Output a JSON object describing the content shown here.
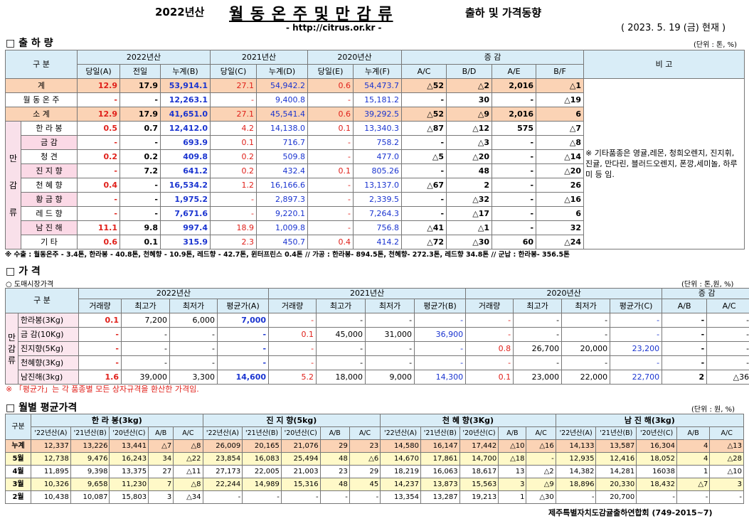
{
  "header": {
    "year_label": "2022년산",
    "main_title": "월 동 온 주 및 만 감 류",
    "sub_title": "출하 및 가격동향",
    "url": "- http://citrus.or.kr -",
    "date": "( 2023.  5.  19 (금) 현재 )"
  },
  "ship": {
    "title": "□ 출 하 량",
    "unit": "(단위 : 톤, %)",
    "h_gubun": "구    분",
    "h_2022": "2022년산",
    "h_2021": "2021년산",
    "h_2020": "2020년산",
    "h_inc": "증     감",
    "h_note": "비 고",
    "subh": [
      "당일(A)",
      "전일",
      "누계(B)",
      "당일(C)",
      "누계(D)",
      "당일(E)",
      "누계(F)",
      "A/C",
      "B/D",
      "A/E",
      "B/F"
    ],
    "total": {
      "label": "계",
      "v": [
        "12.9",
        "17.9",
        "53,914.1",
        "27.1",
        "54,942.2",
        "0.6",
        "54,473.7",
        "△52",
        "△2",
        "2,016",
        "△1"
      ]
    },
    "winter": {
      "label": "월 동 온 주",
      "v": [
        "-",
        "-",
        "12,263.1",
        "-",
        "9,400.8",
        "-",
        "15,181.2",
        "-",
        "30",
        "-",
        "△19"
      ]
    },
    "subtotal": {
      "label": "소    계",
      "v": [
        "12.9",
        "17.9",
        "41,651.0",
        "27.1",
        "45,541.4",
        "0.6",
        "39,292.5",
        "△52",
        "△9",
        "2,016",
        "6"
      ]
    },
    "side_label": [
      "만",
      "감",
      "류"
    ],
    "rows": [
      {
        "label": "한 라 봉",
        "v": [
          "0.5",
          "0.7",
          "12,412.0",
          "4.2",
          "14,138.0",
          "0.1",
          "13,340.3",
          "△87",
          "△12",
          "575",
          "△7"
        ]
      },
      {
        "label": "금   감",
        "v": [
          "-",
          "-",
          "693.9",
          "0.1",
          "716.7",
          "-",
          "758.2",
          "-",
          "△3",
          "-",
          "△8"
        ]
      },
      {
        "label": "청   견",
        "v": [
          "0.2",
          "0.2",
          "409.8",
          "0.2",
          "509.8",
          "-",
          "477.0",
          "△5",
          "△20",
          "-",
          "△14"
        ]
      },
      {
        "label": "진 지 향",
        "v": [
          "-",
          "7.2",
          "641.2",
          "0.2",
          "432.4",
          "0.1",
          "805.26",
          "-",
          "48",
          "-",
          "△20"
        ]
      },
      {
        "label": "천 혜 향",
        "v": [
          "0.4",
          "-",
          "16,534.2",
          "1.2",
          "16,166.6",
          "-",
          "13,137.0",
          "△67",
          "2",
          "-",
          "26"
        ]
      },
      {
        "label": "황 금 향",
        "v": [
          "-",
          "-",
          "1,975.2",
          "-",
          "2,897.3",
          "-",
          "2,339.5",
          "-",
          "△32",
          "-",
          "△16"
        ]
      },
      {
        "label": "레 드 향",
        "v": [
          "-",
          "-",
          "7,671.6",
          "-",
          "9,220.1",
          "-",
          "7,264.3",
          "-",
          "△17",
          "-",
          "6"
        ]
      },
      {
        "label": "남 진 해",
        "v": [
          "11.1",
          "9.8",
          "997.4",
          "18.9",
          "1,009.8",
          "-",
          "756.8",
          "△41",
          "△1",
          "-",
          "32"
        ]
      },
      {
        "label": "기   타",
        "v": [
          "0.6",
          "0.1",
          "315.9",
          "2.3",
          "450.7",
          "0.4",
          "414.2",
          "△72",
          "△30",
          "60",
          "△24"
        ]
      }
    ],
    "note": "※ 기타품종은 영귤,레몬, 청희오렌지, 진지휘, 진귤, 만다린, 블러드오렌지, 폰깡,세미놀, 하루미 등 임.",
    "footnote": "※ 수출 : 월동온주 - 3.4톤, 한라봉 - 40.8톤, 천혜향 - 10.9톤, 레드향 - 42.7톤, 윈터프린스 0.4톤 //  가공  :  한라봉- 894.5톤, 천혜향- 272.3톤, 레드향 34.8톤  //  군납 : 한라봉- 356.5톤"
  },
  "price": {
    "title": "□ 가      격",
    "sub": "○ 도매시장가격",
    "unit": "(단위 : 톤,원, %)",
    "h_gubun": "구    분",
    "h_2022": "2022년산",
    "h_2021": "2021년산",
    "h_2020": "2020년산",
    "h_inc": "증    감",
    "subh": [
      "거래량",
      "최고가",
      "최저가",
      "평균가(A)",
      "거래량",
      "최고가",
      "최저가",
      "평균가(B)",
      "거래량",
      "최고가",
      "최저가",
      "평균가(C)",
      "A/B",
      "A/C"
    ],
    "side_label": [
      "만",
      "감",
      "류"
    ],
    "rows": [
      {
        "label": "한라봉(3Kg)",
        "v": [
          "0.1",
          "7,200",
          "6,000",
          "7,000",
          "-",
          "-",
          "-",
          "-",
          "-",
          "-",
          "-",
          "-",
          "-",
          "-"
        ]
      },
      {
        "label": "금 감(10Kg)",
        "v": [
          "-",
          "-",
          "-",
          "-",
          "0.1",
          "45,000",
          "31,000",
          "36,900",
          "-",
          "-",
          "-",
          "-",
          "-",
          "-"
        ]
      },
      {
        "label": "진지향(5Kg)",
        "v": [
          "-",
          "-",
          "-",
          "-",
          "-",
          "-",
          "-",
          "-",
          "0.8",
          "26,700",
          "20,000",
          "23,200",
          "-",
          "-"
        ]
      },
      {
        "label": "천혜향(3Kg)",
        "v": [
          "-",
          "-",
          "-",
          "-",
          "-",
          "-",
          "-",
          "-",
          "-",
          "-",
          "-",
          "-",
          "-",
          "-"
        ]
      },
      {
        "label": "남진해(3kg)",
        "v": [
          "1.6",
          "39,000",
          "3,300",
          "14,600",
          "5.2",
          "18,000",
          "9,000",
          "14,300",
          "0.1",
          "23,000",
          "22,000",
          "22,700",
          "2",
          "△36"
        ]
      }
    ],
    "footnote": "※ 「평균가」는 각 품종별 모든 상자규격을 환산한 가격임."
  },
  "monthly": {
    "title": "□ 월별 평균가격",
    "unit": "(단위 : 원, %)",
    "h_gubun": "구분",
    "groups": [
      "한 라 봉(3kg)",
      "진 지 향(5kg)",
      "천 혜 향(3Kg)",
      "남 진 해(3kg)"
    ],
    "subh": [
      "'22년산(A)",
      "'21년산(B)",
      "'20년산(C)",
      "A/B",
      "A/C"
    ],
    "rows": [
      {
        "label": "누계",
        "v": [
          "12,337",
          "13,226",
          "13,441",
          "△7",
          "△8",
          "26,009",
          "20,165",
          "21,076",
          "29",
          "23",
          "14,580",
          "16,147",
          "17,442",
          "△10",
          "△16",
          "14,133",
          "13,587",
          "16,304",
          "4",
          "△13"
        ]
      },
      {
        "label": "5월",
        "v": [
          "12,738",
          "9,476",
          "16,243",
          "34",
          "△22",
          "23,854",
          "16,083",
          "25,494",
          "48",
          "△6",
          "14,670",
          "17,861",
          "14,700",
          "△18",
          "-",
          "12,935",
          "12,416",
          "18,052",
          "4",
          "△28"
        ]
      },
      {
        "label": "4월",
        "v": [
          "11,895",
          "9,398",
          "13,375",
          "27",
          "△11",
          "27,173",
          "22,005",
          "21,003",
          "23",
          "29",
          "18,219",
          "16,063",
          "18,617",
          "13",
          "△2",
          "14,382",
          "14,281",
          "16038",
          "1",
          "△10"
        ]
      },
      {
        "label": "3월",
        "v": [
          "10,326",
          "9,658",
          "11,230",
          "7",
          "△8",
          "22,244",
          "14,989",
          "15,316",
          "48",
          "45",
          "14,237",
          "13,873",
          "15,563",
          "3",
          "△9",
          "18,896",
          "20,330",
          "18,432",
          "△7",
          "3"
        ]
      },
      {
        "label": "2월",
        "v": [
          "10,438",
          "10,087",
          "15,803",
          "3",
          "△34",
          "-",
          "-",
          "-",
          "-",
          "-",
          "13,354",
          "13,287",
          "19,213",
          "1",
          "△30",
          "-",
          "20,700",
          "-",
          "-",
          "-"
        ]
      }
    ],
    "footer": "제주특별자치도감귤출하연합회 (749-2015~7)"
  }
}
